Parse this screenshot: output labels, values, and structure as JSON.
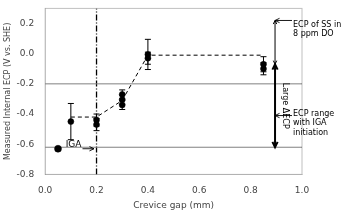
{
  "chart_data": {
    "type": "scatter",
    "xlabel": "Crevice gap (mm)",
    "ylabel": "Measured Internal ECP (V vs. SHE)",
    "xlim": [
      0,
      1.0
    ],
    "ylim": [
      -0.8,
      0.3
    ],
    "xticks": [
      {
        "value": 0,
        "label": "0.0"
      },
      0.2,
      0.4,
      0.6,
      0.8,
      {
        "value": 1.0,
        "label": "1.0"
      }
    ],
    "yticks": [
      -0.8,
      -0.6,
      -0.4,
      -0.2,
      {
        "value": 0.0,
        "label": "0.0"
      },
      0.2
    ],
    "grid": false,
    "series": [
      {
        "type": "line",
        "color": "black",
        "line_style": "dashed",
        "x": [
          0.1,
          0.2,
          0.3,
          0.4,
          0.85
        ],
        "values": [
          -0.42,
          -0.42,
          -0.31,
          -0.01,
          -0.01
        ]
      },
      {
        "type": "scatter",
        "color": "black",
        "marker": "circle",
        "x": [
          0.1,
          0.2,
          0.2,
          0.3,
          0.3,
          0.3,
          0.4,
          0.4,
          0.85,
          0.85
        ],
        "values": [
          -0.45,
          -0.44,
          -0.47,
          -0.27,
          -0.305,
          -0.34,
          -0.005,
          -0.03,
          -0.07,
          -0.1
        ],
        "yerr": [
          0.12,
          0.04,
          0.04,
          0.03,
          0.03,
          0.03,
          0.1,
          0.04,
          0.05,
          0.04
        ]
      },
      {
        "type": "scatter",
        "color": "black",
        "marker": "circle",
        "x": [
          0.05
        ],
        "values": [
          -0.63
        ]
      }
    ],
    "reference_lines": [
      {
        "axis": "y",
        "value": -0.2,
        "color": "gray"
      },
      {
        "axis": "y",
        "value": -0.62,
        "color": "gray"
      },
      {
        "axis": "x",
        "value": 0.2,
        "color": "black",
        "line_style": "dashdot"
      }
    ],
    "annotations": [
      {
        "text": "IGA",
        "x": 0.08,
        "y": -0.6,
        "arrow_x": 0.19,
        "arrow_y": -0.63
      },
      {
        "text": "ECP of SS in\n8 ppm DO",
        "x": 0.965,
        "y": 0.16,
        "arrow_x": 0.895,
        "arrow_y": 0.22
      },
      {
        "text": "ECP range\nwith IGA\ninitiation",
        "x": 0.965,
        "y": -0.46,
        "arrow_x": 0.895,
        "arrow_y": -0.41
      }
    ],
    "double_arrows": [
      {
        "x": 0.895,
        "from": 0.22,
        "to": -0.07
      },
      {
        "x": 0.895,
        "from": -0.07,
        "to": -0.62,
        "label": "Large ΔECP",
        "label_x": 0.915,
        "label_y": -0.345
      }
    ]
  }
}
